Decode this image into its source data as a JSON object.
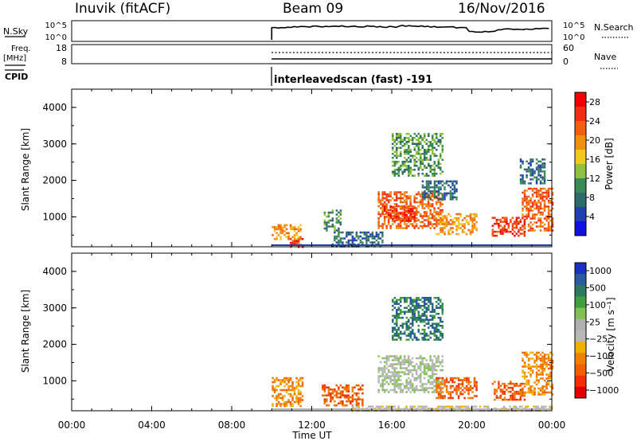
{
  "header": {
    "station": "Inuvik (fitACF)",
    "beam": "Beam 09",
    "date": "16/Nov/2016"
  },
  "top_panels": {
    "nsky_label": "N.Sky",
    "nsky_ticks": [
      "10^5",
      "10^0"
    ],
    "nsearch_label": "N.Search",
    "nsearch_ticks": [
      "10^5",
      "10^0"
    ],
    "freq_label": "Freq.",
    "freq_unit": "[MHz]",
    "freq_ticks": [
      "18",
      "8"
    ],
    "nave_label": "Nave",
    "nave_ticks": [
      "60",
      "0"
    ],
    "cpid_label": "CPID",
    "cpid_text": "interleavedscan (fast) -191"
  },
  "chart_data": [
    {
      "type": "heatmap",
      "name": "power-panel",
      "x_range_hours": [
        0,
        24
      ],
      "y_range_km": [
        180,
        4500
      ],
      "ylabel": "Slant Range [km]",
      "yticks": [
        "1000",
        "2000",
        "3000",
        "4000"
      ],
      "ytick_values": [
        1000,
        2000,
        3000,
        4000
      ],
      "colorbar": {
        "label": "Power [dB]",
        "ticks": [
          "4",
          "8",
          "12",
          "16",
          "20",
          "24",
          "28"
        ],
        "tick_values": [
          4,
          8,
          12,
          16,
          20,
          24,
          28
        ],
        "range": [
          0,
          30
        ],
        "colors": [
          "#1010e0",
          "#2040b0",
          "#2e6a6a",
          "#3a8a55",
          "#90c040",
          "#f0c820",
          "#f09010",
          "#f06010",
          "#f03010",
          "#f00000"
        ]
      },
      "data_start_hour": 10.0,
      "clusters": [
        {
          "x": [
            10.0,
            11.4
          ],
          "y": [
            400,
            800
          ],
          "value": 20
        },
        {
          "x": [
            10.9,
            11.5
          ],
          "y": [
            180,
            420
          ],
          "value": 26
        },
        {
          "x": [
            12.6,
            13.4
          ],
          "y": [
            600,
            1200
          ],
          "value": 10
        },
        {
          "x": [
            15.3,
            18.5
          ],
          "y": [
            700,
            1700
          ],
          "value": 24
        },
        {
          "x": [
            15.6,
            17.2
          ],
          "y": [
            900,
            1300
          ],
          "value": 28
        },
        {
          "x": [
            18.2,
            20.2
          ],
          "y": [
            500,
            1100
          ],
          "value": 20
        },
        {
          "x": [
            16.0,
            18.5
          ],
          "y": [
            2100,
            3300
          ],
          "value": 10
        },
        {
          "x": [
            17.5,
            19.2
          ],
          "y": [
            1500,
            2000
          ],
          "value": 8
        },
        {
          "x": [
            21.0,
            22.6
          ],
          "y": [
            500,
            1000
          ],
          "value": 28
        },
        {
          "x": [
            22.5,
            24.0
          ],
          "y": [
            600,
            1800
          ],
          "value": 22
        },
        {
          "x": [
            22.4,
            23.6
          ],
          "y": [
            1900,
            2600
          ],
          "value": 8
        },
        {
          "x": [
            13.0,
            15.5
          ],
          "y": [
            200,
            600
          ],
          "value": 8
        }
      ]
    },
    {
      "type": "heatmap",
      "name": "velocity-panel",
      "x_range_hours": [
        0,
        24
      ],
      "y_range_km": [
        180,
        4500
      ],
      "ylabel": "Slant Range [km]",
      "xlabel": "Time UT",
      "yticks": [
        "1000",
        "2000",
        "3000",
        "4000"
      ],
      "ytick_values": [
        1000,
        2000,
        3000,
        4000
      ],
      "xticks": [
        "00:00",
        "04:00",
        "08:00",
        "12:00",
        "16:00",
        "20:00",
        "00:00"
      ],
      "xtick_values": [
        0,
        4,
        8,
        12,
        16,
        20,
        24
      ],
      "colorbar": {
        "label": "Velocity [m s⁻¹]",
        "ticks": [
          "1000",
          "500",
          "100",
          "25",
          "−25",
          "−100",
          "−500",
          "−1000"
        ],
        "colors": [
          "#1a30c0",
          "#2a5aa0",
          "#2e7a60",
          "#40a040",
          "#80c050",
          "#b0b0b0",
          "#b8b8b8",
          "#f0b000",
          "#f08000",
          "#f06000",
          "#f03000",
          "#e00000"
        ]
      },
      "data_start_hour": 10.0,
      "clusters": [
        {
          "x": [
            10.0,
            11.5
          ],
          "y": [
            300,
            1100
          ],
          "value": -100
        },
        {
          "x": [
            12.5,
            14.5
          ],
          "y": [
            300,
            900
          ],
          "value": -500
        },
        {
          "x": [
            15.3,
            18.5
          ],
          "y": [
            700,
            1700
          ],
          "value": 25
        },
        {
          "x": [
            16.0,
            18.5
          ],
          "y": [
            2100,
            3300
          ],
          "value": 100
        },
        {
          "x": [
            18.2,
            20.2
          ],
          "y": [
            500,
            1100
          ],
          "value": -500
        },
        {
          "x": [
            21.0,
            22.6
          ],
          "y": [
            500,
            1000
          ],
          "value": -500
        },
        {
          "x": [
            22.5,
            24.0
          ],
          "y": [
            600,
            1800
          ],
          "value": -100
        },
        {
          "x": [
            14.0,
            24.0
          ],
          "y": [
            180,
            320
          ],
          "value": -25
        }
      ]
    }
  ]
}
